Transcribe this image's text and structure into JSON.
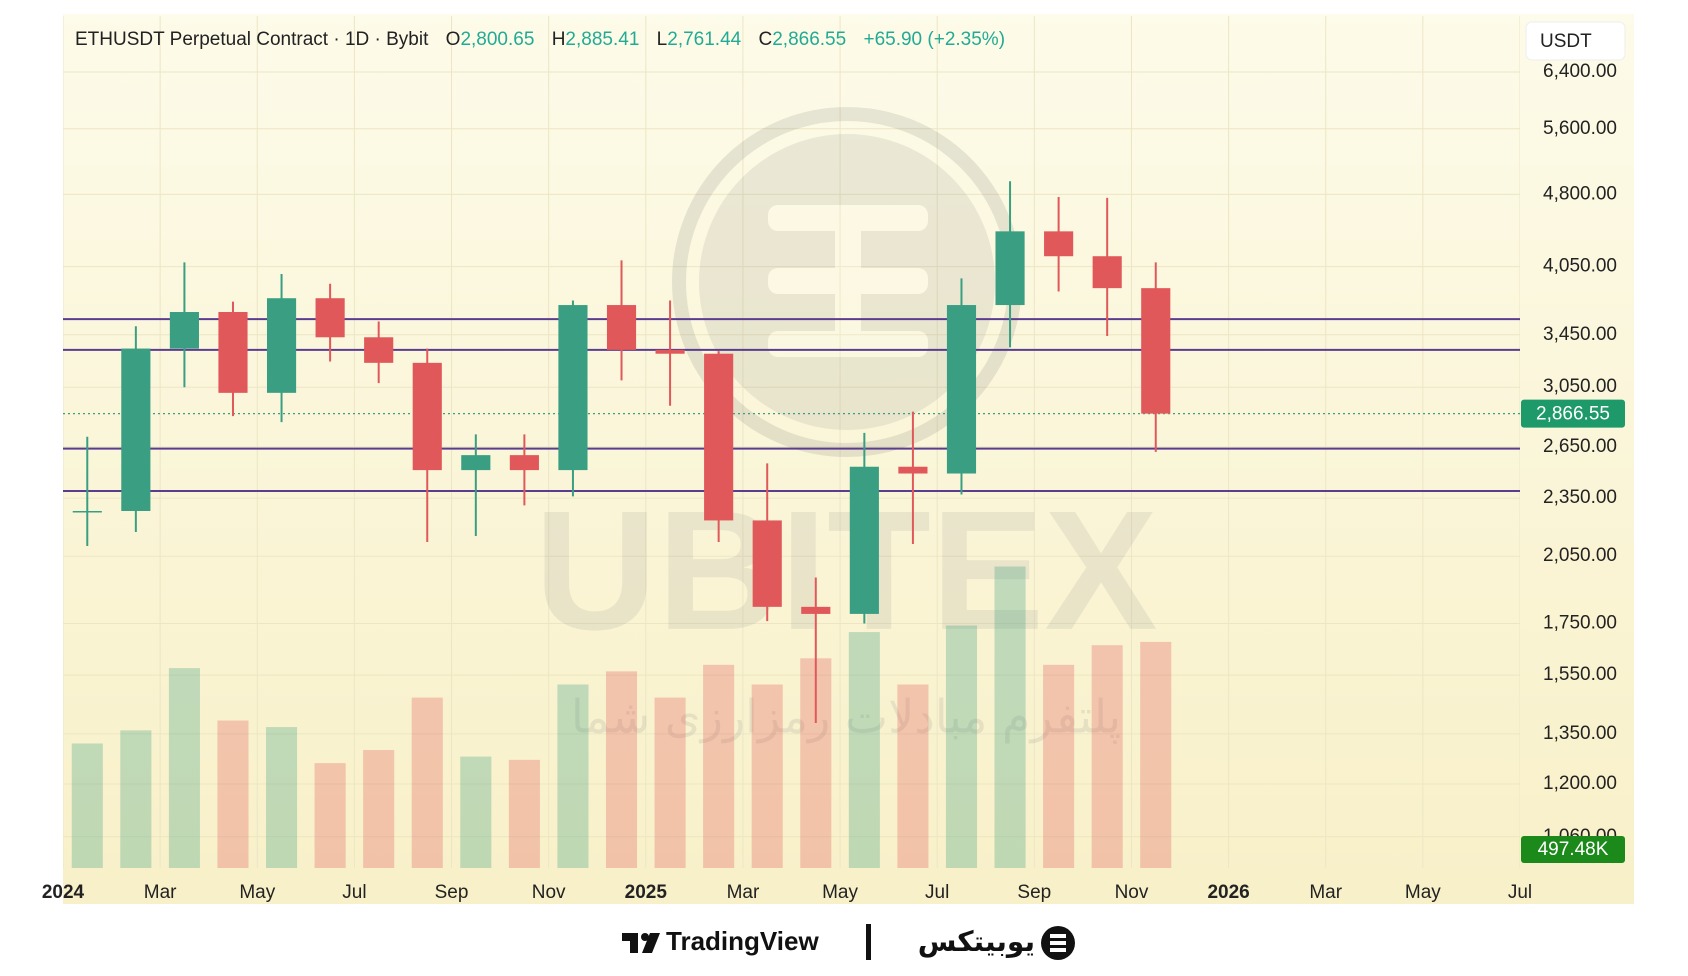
{
  "chart_data": {
    "type": "candlestick",
    "header": {
      "title": "ETHUSDT Perpetual Contract · 1D · Bybit",
      "open_key": "O",
      "open": "2,800.65",
      "high_key": "H",
      "high": "2,885.41",
      "low_key": "L",
      "low": "2,761.44",
      "close_key": "C",
      "close": "2,866.55",
      "change": "+65.90 (+2.35%)"
    },
    "currency": "USDT",
    "log_scale": true,
    "grid": true,
    "up_color": "#3a9f82",
    "down_color": "#e0585a",
    "level_color": "#5b3d8f",
    "ylim": [
      985,
      7300
    ],
    "yticks": [
      {
        "value": 6400,
        "label": "6,400.00"
      },
      {
        "value": 5600,
        "label": "5,600.00"
      },
      {
        "value": 4800,
        "label": "4,800.00"
      },
      {
        "value": 4050,
        "label": "4,050.00"
      },
      {
        "value": 3450,
        "label": "3,450.00"
      },
      {
        "value": 3050,
        "label": "3,050.00"
      },
      {
        "value": 2650,
        "label": "2,650.00"
      },
      {
        "value": 2350,
        "label": "2,350.00"
      },
      {
        "value": 2050,
        "label": "2,050.00"
      },
      {
        "value": 1750,
        "label": "1,750.00"
      },
      {
        "value": 1550,
        "label": "1,550.00"
      },
      {
        "value": 1350,
        "label": "1,350.00"
      },
      {
        "value": 1200,
        "label": "1,200.00"
      },
      {
        "value": 1060,
        "label": "1,060.00"
      }
    ],
    "xlim": [
      "2024-01",
      "2026-07"
    ],
    "xticks": [
      {
        "value": "2024-01",
        "label": "2024"
      },
      {
        "value": "2024-03",
        "label": "Mar"
      },
      {
        "value": "2024-05",
        "label": "May"
      },
      {
        "value": "2024-07",
        "label": "Jul"
      },
      {
        "value": "2024-09",
        "label": "Sep"
      },
      {
        "value": "2024-11",
        "label": "Nov"
      },
      {
        "value": "2025-01",
        "label": "2025"
      },
      {
        "value": "2025-03",
        "label": "Mar"
      },
      {
        "value": "2025-05",
        "label": "May"
      },
      {
        "value": "2025-07",
        "label": "Jul"
      },
      {
        "value": "2025-09",
        "label": "Sep"
      },
      {
        "value": "2025-11",
        "label": "Nov"
      },
      {
        "value": "2026-01",
        "label": "2026"
      },
      {
        "value": "2026-03",
        "label": "Mar"
      },
      {
        "value": "2026-05",
        "label": "May"
      },
      {
        "value": "2026-07",
        "label": "Jul"
      }
    ],
    "candles": {
      "x": [
        "2024-01",
        "2024-02",
        "2024-03",
        "2024-04",
        "2024-05",
        "2024-06",
        "2024-07",
        "2024-08",
        "2024-09",
        "2024-10",
        "2024-11",
        "2024-12",
        "2025-01",
        "2025-02",
        "2025-03",
        "2025-04",
        "2025-05",
        "2025-06",
        "2025-07",
        "2025-08",
        "2025-09",
        "2025-10",
        "2025-11"
      ],
      "open": [
        2280,
        2280,
        3340,
        3640,
        3010,
        3760,
        3430,
        3230,
        2510,
        2600,
        2510,
        3700,
        3330,
        3300,
        2230,
        1820,
        1790,
        2530,
        2490,
        3700,
        4400,
        4150,
        3850
      ],
      "high": [
        2715,
        3520,
        4090,
        3730,
        3980,
        3890,
        3560,
        3340,
        2730,
        2730,
        3740,
        4110,
        3740,
        3320,
        2550,
        1950,
        2740,
        2880,
        3940,
        4950,
        4770,
        4760,
        4090
      ],
      "low": [
        2100,
        2170,
        3050,
        2850,
        2810,
        3240,
        3080,
        2120,
        2150,
        2310,
        2360,
        3100,
        2920,
        2120,
        1760,
        1385,
        1750,
        2110,
        2370,
        3350,
        3820,
        3440,
        2620
      ],
      "close": [
        2280,
        3340,
        3640,
        3010,
        3760,
        3430,
        3230,
        2510,
        2600,
        2510,
        3700,
        3330,
        3300,
        2230,
        1820,
        1790,
        2530,
        2490,
        3700,
        4400,
        4150,
        3850,
        2866.55
      ],
      "volume": [
        380,
        420,
        610,
        450,
        430,
        320,
        360,
        520,
        340,
        330,
        560,
        600,
        520,
        620,
        560,
        640,
        720,
        560,
        740,
        920,
        620,
        680,
        690
      ]
    },
    "volume_ylim": [
      0,
      2600
    ],
    "levels": [
      3580,
      3330,
      2640,
      2390
    ],
    "last_price": {
      "value": 2866.55,
      "label": "2,866.55"
    },
    "volume_tag": "497.48K",
    "watermark": {
      "brand": "UBITEX",
      "slogan": "پلتفرم مبادلات رمزارزی شما"
    },
    "footer": {
      "left": "TradingView",
      "right": "یوبیتکس"
    }
  }
}
